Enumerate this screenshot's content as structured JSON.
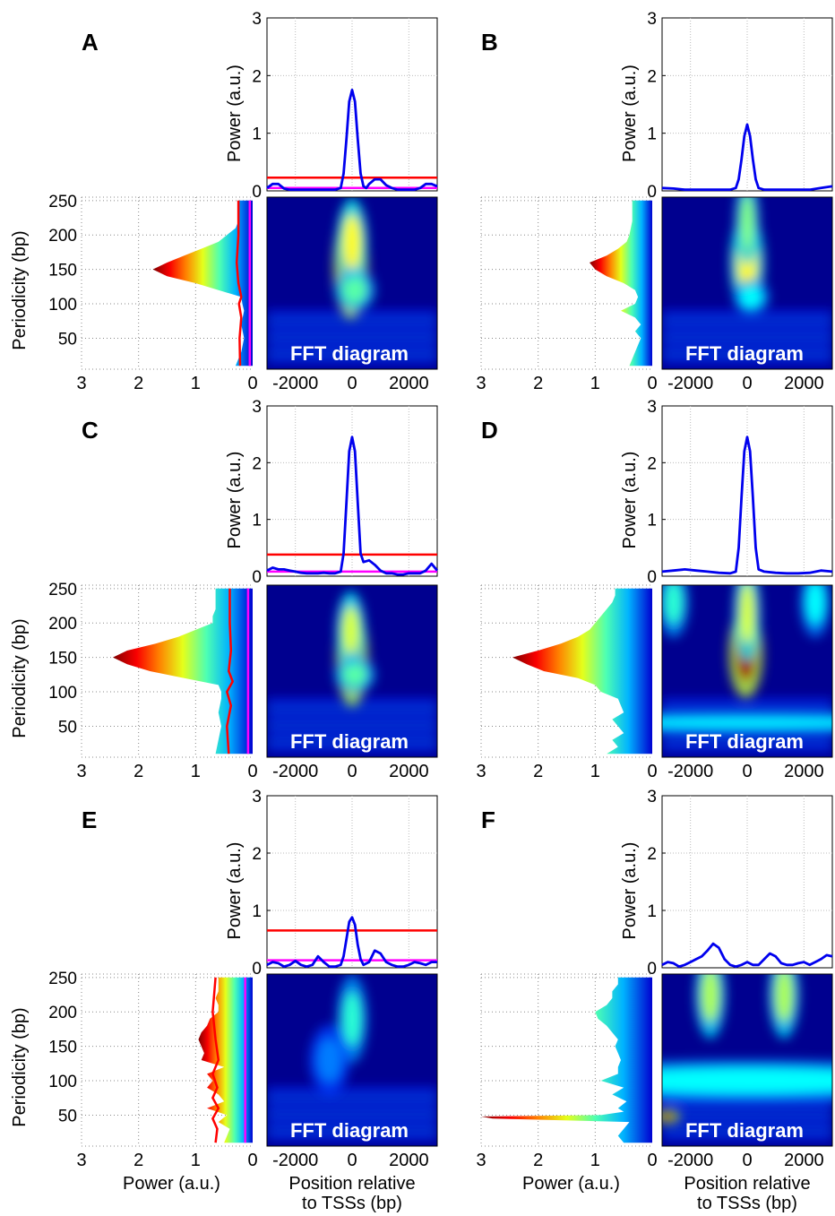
{
  "chart_data": {
    "type": "heatmap",
    "panels_order": [
      "A",
      "B",
      "C",
      "D",
      "E",
      "F"
    ],
    "panels": [
      {
        "letter": "A",
        "fft_label": "FFT diagram",
        "has_thresholds": true,
        "threshold_red": 0.23,
        "threshold_magenta": 0.05,
        "top_profile": {
          "x": [
            -3000,
            -2800,
            -2600,
            -2400,
            -2200,
            -2000,
            -1800,
            -1600,
            -1400,
            -1200,
            -1000,
            -800,
            -600,
            -400,
            -300,
            -200,
            -100,
            0,
            100,
            200,
            300,
            400,
            500,
            600,
            800,
            1000,
            1200,
            1400,
            1600,
            1800,
            2000,
            2200,
            2400,
            2600,
            2800,
            3000
          ],
          "y": [
            0.05,
            0.12,
            0.12,
            0.04,
            0.02,
            0.02,
            0.02,
            0.02,
            0.02,
            0.02,
            0.02,
            0.02,
            0.02,
            0.05,
            0.3,
            0.9,
            1.55,
            1.75,
            1.55,
            0.9,
            0.3,
            0.08,
            0.05,
            0.12,
            0.2,
            0.2,
            0.1,
            0.05,
            0.02,
            0.02,
            0.02,
            0.02,
            0.05,
            0.12,
            0.12,
            0.08
          ]
        },
        "side_profile": {
          "periodicity": [
            10,
            30,
            50,
            70,
            90,
            100,
            110,
            120,
            130,
            140,
            150,
            160,
            170,
            180,
            190,
            200,
            210,
            220,
            230,
            240,
            250
          ],
          "power": [
            0.3,
            0.2,
            0.15,
            0.2,
            0.15,
            0.18,
            0.2,
            0.6,
            1.0,
            1.5,
            1.75,
            1.5,
            1.2,
            0.9,
            0.6,
            0.45,
            0.3,
            0.25,
            0.25,
            0.25,
            0.25
          ]
        },
        "side_red": {
          "periodicity": [
            10,
            50,
            80,
            100,
            110,
            130,
            160,
            200,
            250
          ],
          "power": [
            0.22,
            0.23,
            0.2,
            0.24,
            0.2,
            0.25,
            0.28,
            0.25,
            0.25
          ]
        },
        "side_magenta": {
          "periodicity": [
            10,
            250
          ],
          "power": [
            0.05,
            0.05
          ]
        },
        "hotspots": [
          {
            "x": -50,
            "periodicity": 155,
            "sx": 170,
            "sy": 30,
            "amp": 1.0
          },
          {
            "x": 0,
            "periodicity": 190,
            "sx": 150,
            "sy": 25,
            "amp": 0.6
          },
          {
            "x": 100,
            "periodicity": 120,
            "sx": 200,
            "sy": 12,
            "amp": 0.4
          }
        ]
      },
      {
        "letter": "B",
        "fft_label": "FFT diagram",
        "has_thresholds": false,
        "top_profile": {
          "x": [
            -3000,
            -2600,
            -2200,
            -1800,
            -1400,
            -1000,
            -600,
            -400,
            -300,
            -200,
            -100,
            0,
            100,
            200,
            300,
            400,
            600,
            1000,
            1400,
            1800,
            2200,
            2600,
            3000
          ],
          "y": [
            0.05,
            0.04,
            0.02,
            0.02,
            0.02,
            0.02,
            0.02,
            0.05,
            0.2,
            0.55,
            0.95,
            1.15,
            0.95,
            0.55,
            0.2,
            0.05,
            0.02,
            0.02,
            0.02,
            0.02,
            0.02,
            0.05,
            0.08
          ]
        },
        "side_profile": {
          "periodicity": [
            10,
            30,
            50,
            60,
            70,
            80,
            90,
            100,
            110,
            120,
            130,
            140,
            150,
            160,
            170,
            180,
            190,
            200,
            220,
            250
          ],
          "power": [
            0.4,
            0.3,
            0.2,
            0.3,
            0.2,
            0.3,
            0.55,
            0.3,
            0.25,
            0.3,
            0.5,
            0.8,
            1.0,
            1.1,
            0.8,
            0.6,
            0.45,
            0.4,
            0.35,
            0.35
          ]
        },
        "hotspots": [
          {
            "x": 0,
            "periodicity": 160,
            "sx": 170,
            "sy": 28,
            "amp": 0.6
          },
          {
            "x": 0,
            "periodicity": 220,
            "sx": 120,
            "sy": 25,
            "amp": 0.45
          },
          {
            "x": 150,
            "periodicity": 110,
            "sx": 180,
            "sy": 10,
            "amp": 0.3
          }
        ]
      },
      {
        "letter": "C",
        "fft_label": "FFT diagram",
        "has_thresholds": true,
        "threshold_red": 0.38,
        "threshold_magenta": 0.08,
        "top_profile": {
          "x": [
            -3000,
            -2800,
            -2600,
            -2400,
            -2200,
            -2000,
            -1800,
            -1600,
            -1400,
            -1200,
            -1000,
            -800,
            -600,
            -400,
            -300,
            -200,
            -100,
            0,
            100,
            200,
            300,
            400,
            600,
            800,
            1000,
            1200,
            1400,
            1600,
            1800,
            2000,
            2200,
            2400,
            2600,
            2800,
            3000
          ],
          "y": [
            0.1,
            0.15,
            0.12,
            0.12,
            0.1,
            0.08,
            0.06,
            0.05,
            0.05,
            0.05,
            0.06,
            0.05,
            0.05,
            0.08,
            0.4,
            1.3,
            2.2,
            2.45,
            2.2,
            1.3,
            0.4,
            0.25,
            0.28,
            0.2,
            0.1,
            0.05,
            0.05,
            0.03,
            0.03,
            0.05,
            0.05,
            0.05,
            0.1,
            0.22,
            0.1
          ]
        },
        "side_profile": {
          "periodicity": [
            10,
            30,
            50,
            70,
            90,
            100,
            110,
            120,
            130,
            140,
            150,
            160,
            170,
            180,
            190,
            200,
            210,
            220,
            230,
            240,
            250
          ],
          "power": [
            0.65,
            0.6,
            0.55,
            0.6,
            0.55,
            0.55,
            0.6,
            1.2,
            1.8,
            2.2,
            2.45,
            2.2,
            1.7,
            1.3,
            1.0,
            0.7,
            0.7,
            0.65,
            0.65,
            0.65,
            0.65
          ]
        },
        "side_red": {
          "periodicity": [
            10,
            50,
            80,
            100,
            115,
            130,
            160,
            200,
            250
          ],
          "power": [
            0.42,
            0.45,
            0.38,
            0.45,
            0.35,
            0.42,
            0.38,
            0.4,
            0.4
          ]
        },
        "side_magenta": {
          "periodicity": [
            10,
            250
          ],
          "power": [
            0.08,
            0.08
          ]
        },
        "hotspots": [
          {
            "x": 0,
            "periodicity": 150,
            "sx": 160,
            "sy": 28,
            "amp": 0.95
          },
          {
            "x": -50,
            "periodicity": 190,
            "sx": 140,
            "sy": 22,
            "amp": 0.55
          },
          {
            "x": 100,
            "periodicity": 125,
            "sx": 200,
            "sy": 10,
            "amp": 0.4
          }
        ]
      },
      {
        "letter": "D",
        "fft_label": "FFT diagram",
        "has_thresholds": false,
        "top_profile": {
          "x": [
            -3000,
            -2600,
            -2200,
            -1800,
            -1400,
            -1000,
            -600,
            -400,
            -300,
            -200,
            -100,
            0,
            100,
            200,
            300,
            400,
            600,
            1000,
            1400,
            1800,
            2200,
            2600,
            3000
          ],
          "y": [
            0.08,
            0.1,
            0.12,
            0.1,
            0.08,
            0.06,
            0.05,
            0.08,
            0.5,
            1.4,
            2.2,
            2.45,
            2.2,
            1.4,
            0.5,
            0.12,
            0.08,
            0.06,
            0.05,
            0.05,
            0.06,
            0.1,
            0.08
          ]
        },
        "side_profile": {
          "periodicity": [
            10,
            20,
            30,
            40,
            50,
            60,
            70,
            80,
            90,
            100,
            110,
            120,
            130,
            140,
            150,
            160,
            170,
            180,
            190,
            200,
            210,
            220,
            230,
            240,
            250
          ],
          "power": [
            0.8,
            0.6,
            0.7,
            0.5,
            0.6,
            0.7,
            0.5,
            0.55,
            0.6,
            0.9,
            1.0,
            1.3,
            1.9,
            2.2,
            2.45,
            2.0,
            1.6,
            1.3,
            1.1,
            1.0,
            0.9,
            0.8,
            0.7,
            0.65,
            0.65
          ]
        },
        "hotspots": [
          {
            "x": -50,
            "periodicity": 155,
            "sx": 170,
            "sy": 25,
            "amp": 1.0
          },
          {
            "x": 0,
            "periodicity": 215,
            "sx": 130,
            "sy": 28,
            "amp": 0.55
          },
          {
            "x": -2600,
            "periodicity": 230,
            "sx": 150,
            "sy": 20,
            "amp": 0.35
          },
          {
            "x": 2400,
            "periodicity": 230,
            "sx": 150,
            "sy": 20,
            "amp": 0.3
          },
          {
            "x": 0,
            "periodicity": 55,
            "sx": 2500,
            "sy": 6,
            "amp": 0.28
          }
        ]
      },
      {
        "letter": "E",
        "fft_label": "FFT diagram",
        "has_thresholds": true,
        "threshold_red": 0.65,
        "threshold_magenta": 0.13,
        "top_profile": {
          "x": [
            -3000,
            -2800,
            -2600,
            -2400,
            -2200,
            -2000,
            -1800,
            -1600,
            -1400,
            -1200,
            -1000,
            -800,
            -600,
            -400,
            -300,
            -200,
            -100,
            0,
            100,
            200,
            300,
            400,
            600,
            800,
            1000,
            1200,
            1400,
            1600,
            1800,
            2000,
            2200,
            2400,
            2600,
            2800,
            3000
          ],
          "y": [
            0.05,
            0.1,
            0.08,
            0.02,
            0.05,
            0.12,
            0.05,
            0.02,
            0.05,
            0.2,
            0.1,
            0.02,
            0.02,
            0.05,
            0.2,
            0.5,
            0.8,
            0.88,
            0.75,
            0.4,
            0.15,
            0.05,
            0.1,
            0.3,
            0.25,
            0.1,
            0.05,
            0.02,
            0.02,
            0.05,
            0.1,
            0.08,
            0.05,
            0.1,
            0.1
          ]
        },
        "side_profile": {
          "periodicity": [
            10,
            30,
            40,
            50,
            60,
            70,
            80,
            90,
            100,
            110,
            120,
            130,
            140,
            150,
            160,
            170,
            180,
            190,
            200,
            210,
            220,
            230,
            240,
            250
          ],
          "power": [
            0.5,
            0.4,
            0.6,
            0.45,
            0.8,
            0.5,
            0.6,
            0.8,
            0.7,
            0.8,
            0.5,
            0.9,
            0.85,
            0.9,
            0.95,
            0.9,
            0.8,
            0.75,
            0.6,
            0.6,
            0.65,
            0.6,
            0.6,
            0.6
          ]
        },
        "side_red": {
          "periodicity": [
            10,
            30,
            45,
            60,
            75,
            90,
            110,
            130,
            160,
            200,
            250
          ],
          "power": [
            0.65,
            0.62,
            0.7,
            0.6,
            0.7,
            0.62,
            0.7,
            0.6,
            0.65,
            0.7,
            0.65
          ]
        },
        "side_magenta": {
          "periodicity": [
            10,
            250
          ],
          "power": [
            0.13,
            0.13
          ]
        },
        "hotspots": [
          {
            "x": 0,
            "periodicity": 190,
            "sx": 150,
            "sy": 25,
            "amp": 0.35
          },
          {
            "x": -800,
            "periodicity": 130,
            "sx": 200,
            "sy": 20,
            "amp": 0.15
          }
        ]
      },
      {
        "letter": "F",
        "fft_label": "FFT diagram",
        "has_thresholds": false,
        "top_profile": {
          "x": [
            -3000,
            -2800,
            -2600,
            -2400,
            -2200,
            -2000,
            -1800,
            -1600,
            -1400,
            -1200,
            -1000,
            -800,
            -600,
            -400,
            -200,
            0,
            200,
            400,
            600,
            800,
            1000,
            1200,
            1400,
            1600,
            1800,
            2000,
            2200,
            2400,
            2600,
            2800,
            3000
          ],
          "y": [
            0.05,
            0.1,
            0.08,
            0.02,
            0.05,
            0.1,
            0.15,
            0.2,
            0.3,
            0.42,
            0.35,
            0.15,
            0.05,
            0.02,
            0.05,
            0.1,
            0.05,
            0.05,
            0.15,
            0.25,
            0.2,
            0.08,
            0.05,
            0.05,
            0.08,
            0.1,
            0.05,
            0.1,
            0.15,
            0.22,
            0.2
          ]
        },
        "side_profile": {
          "periodicity": [
            10,
            20,
            30,
            40,
            45,
            48,
            50,
            55,
            60,
            70,
            80,
            90,
            100,
            110,
            120,
            130,
            140,
            150,
            160,
            170,
            180,
            190,
            200,
            210,
            220,
            230,
            240,
            250
          ],
          "power": [
            0.5,
            0.6,
            0.5,
            0.4,
            2.8,
            3.0,
            0.9,
            0.5,
            0.6,
            0.45,
            0.7,
            0.5,
            0.9,
            0.6,
            0.6,
            0.55,
            0.6,
            0.65,
            0.6,
            0.7,
            0.8,
            0.95,
            1.0,
            0.8,
            0.7,
            0.7,
            0.6,
            0.6
          ]
        },
        "hotspots": [
          {
            "x": -2800,
            "periodicity": 48,
            "sx": 120,
            "sy": 4,
            "amp": 1.0
          },
          {
            "x": -1300,
            "periodicity": 225,
            "sx": 150,
            "sy": 25,
            "amp": 0.5
          },
          {
            "x": 1300,
            "periodicity": 225,
            "sx": 150,
            "sy": 25,
            "amp": 0.5
          },
          {
            "x": 0,
            "periodicity": 100,
            "sx": 2500,
            "sy": 12,
            "amp": 0.3
          }
        ]
      }
    ],
    "axes": {
      "power_ylabel": "Power (a.u.)",
      "power_yticks": [
        "0",
        "1",
        "2",
        "3"
      ],
      "period_ylabel": "Periodicity (bp)",
      "period_yticks": [
        "250",
        "200",
        "150",
        "100",
        "50"
      ],
      "side_xticks": [
        "3",
        "2",
        "1",
        "0"
      ],
      "fft_xticks": [
        "-2000",
        "0",
        "2000"
      ],
      "side_xlabel": "Power (a.u.)",
      "fft_xlabel_line1": "Position relative",
      "fft_xlabel_line2": "to TSSs (bp)"
    }
  }
}
